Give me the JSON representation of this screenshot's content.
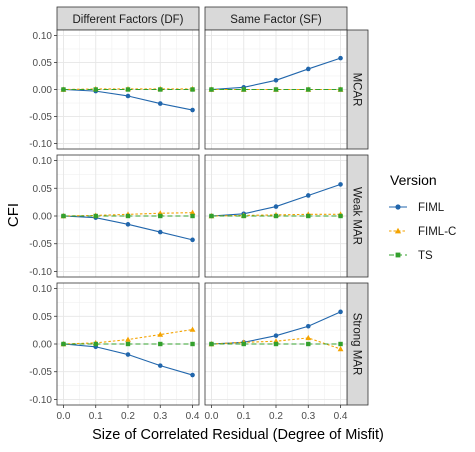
{
  "chart_data": {
    "type": "line",
    "ylabel": "CFI",
    "xlabel": "Size of Correlated Residual (Degree of Misfit)",
    "x_ticks": [
      "0.0",
      "0.1",
      "0.2",
      "0.3",
      "0.4"
    ],
    "y_ticks": [
      "0.10",
      "0.05",
      "0.00",
      "-0.05",
      "-0.10"
    ],
    "xlim": [
      -0.02,
      0.42
    ],
    "ylim": [
      -0.11,
      0.11
    ],
    "grid": true,
    "legend_title": "Version",
    "legend_position": "right",
    "colors": {
      "FIML": "#2166ac",
      "FIML-C": "#f4a300",
      "TS": "#33a02c"
    },
    "column_strips": [
      "Different Factors (DF)",
      "Same Factor (SF)"
    ],
    "row_strips": [
      "MCAR",
      "Weak MAR",
      "Strong MAR"
    ],
    "x": [
      0.0,
      0.1,
      0.2,
      0.3,
      0.4
    ],
    "panels": [
      {
        "row": "MCAR",
        "col": "Different Factors (DF)",
        "series": [
          {
            "name": "FIML",
            "values": [
              0.0,
              -0.003,
              -0.012,
              -0.026,
              -0.038
            ]
          },
          {
            "name": "FIML-C",
            "values": [
              0.0,
              0.001,
              0.001,
              0.001,
              0.001
            ]
          },
          {
            "name": "TS",
            "values": [
              0.0,
              0.0,
              0.0,
              0.0,
              0.0
            ]
          }
        ]
      },
      {
        "row": "MCAR",
        "col": "Same Factor (SF)",
        "series": [
          {
            "name": "FIML",
            "values": [
              0.0,
              0.004,
              0.017,
              0.038,
              0.058
            ]
          },
          {
            "name": "FIML-C",
            "values": [
              0.0,
              0.0,
              0.0,
              0.0,
              0.0
            ]
          },
          {
            "name": "TS",
            "values": [
              0.0,
              0.0,
              0.0,
              0.0,
              0.0
            ]
          }
        ]
      },
      {
        "row": "Weak MAR",
        "col": "Different Factors (DF)",
        "series": [
          {
            "name": "FIML",
            "values": [
              0.0,
              -0.003,
              -0.015,
              -0.029,
              -0.043
            ]
          },
          {
            "name": "FIML-C",
            "values": [
              0.0,
              0.001,
              0.003,
              0.005,
              0.006
            ]
          },
          {
            "name": "TS",
            "values": [
              0.0,
              0.0,
              0.0,
              0.0,
              0.0
            ]
          }
        ]
      },
      {
        "row": "Weak MAR",
        "col": "Same Factor (SF)",
        "series": [
          {
            "name": "FIML",
            "values": [
              0.0,
              0.004,
              0.017,
              0.037,
              0.057
            ]
          },
          {
            "name": "FIML-C",
            "values": [
              0.0,
              0.001,
              0.002,
              0.003,
              0.003
            ]
          },
          {
            "name": "TS",
            "values": [
              0.0,
              0.0,
              0.0,
              0.0,
              0.0
            ]
          }
        ]
      },
      {
        "row": "Strong MAR",
        "col": "Different Factors (DF)",
        "series": [
          {
            "name": "FIML",
            "values": [
              0.0,
              -0.005,
              -0.019,
              -0.039,
              -0.056
            ]
          },
          {
            "name": "FIML-C",
            "values": [
              0.0,
              0.002,
              0.008,
              0.017,
              0.026
            ]
          },
          {
            "name": "TS",
            "values": [
              0.0,
              0.0,
              0.0,
              0.0,
              0.0
            ]
          }
        ]
      },
      {
        "row": "Strong MAR",
        "col": "Same Factor (SF)",
        "series": [
          {
            "name": "FIML",
            "values": [
              0.0,
              0.003,
              0.015,
              0.032,
              0.058
            ]
          },
          {
            "name": "FIML-C",
            "values": [
              0.0,
              0.003,
              0.005,
              0.011,
              -0.009
            ]
          },
          {
            "name": "TS",
            "values": [
              0.0,
              0.0,
              0.0,
              0.0,
              0.0
            ]
          }
        ]
      }
    ]
  }
}
